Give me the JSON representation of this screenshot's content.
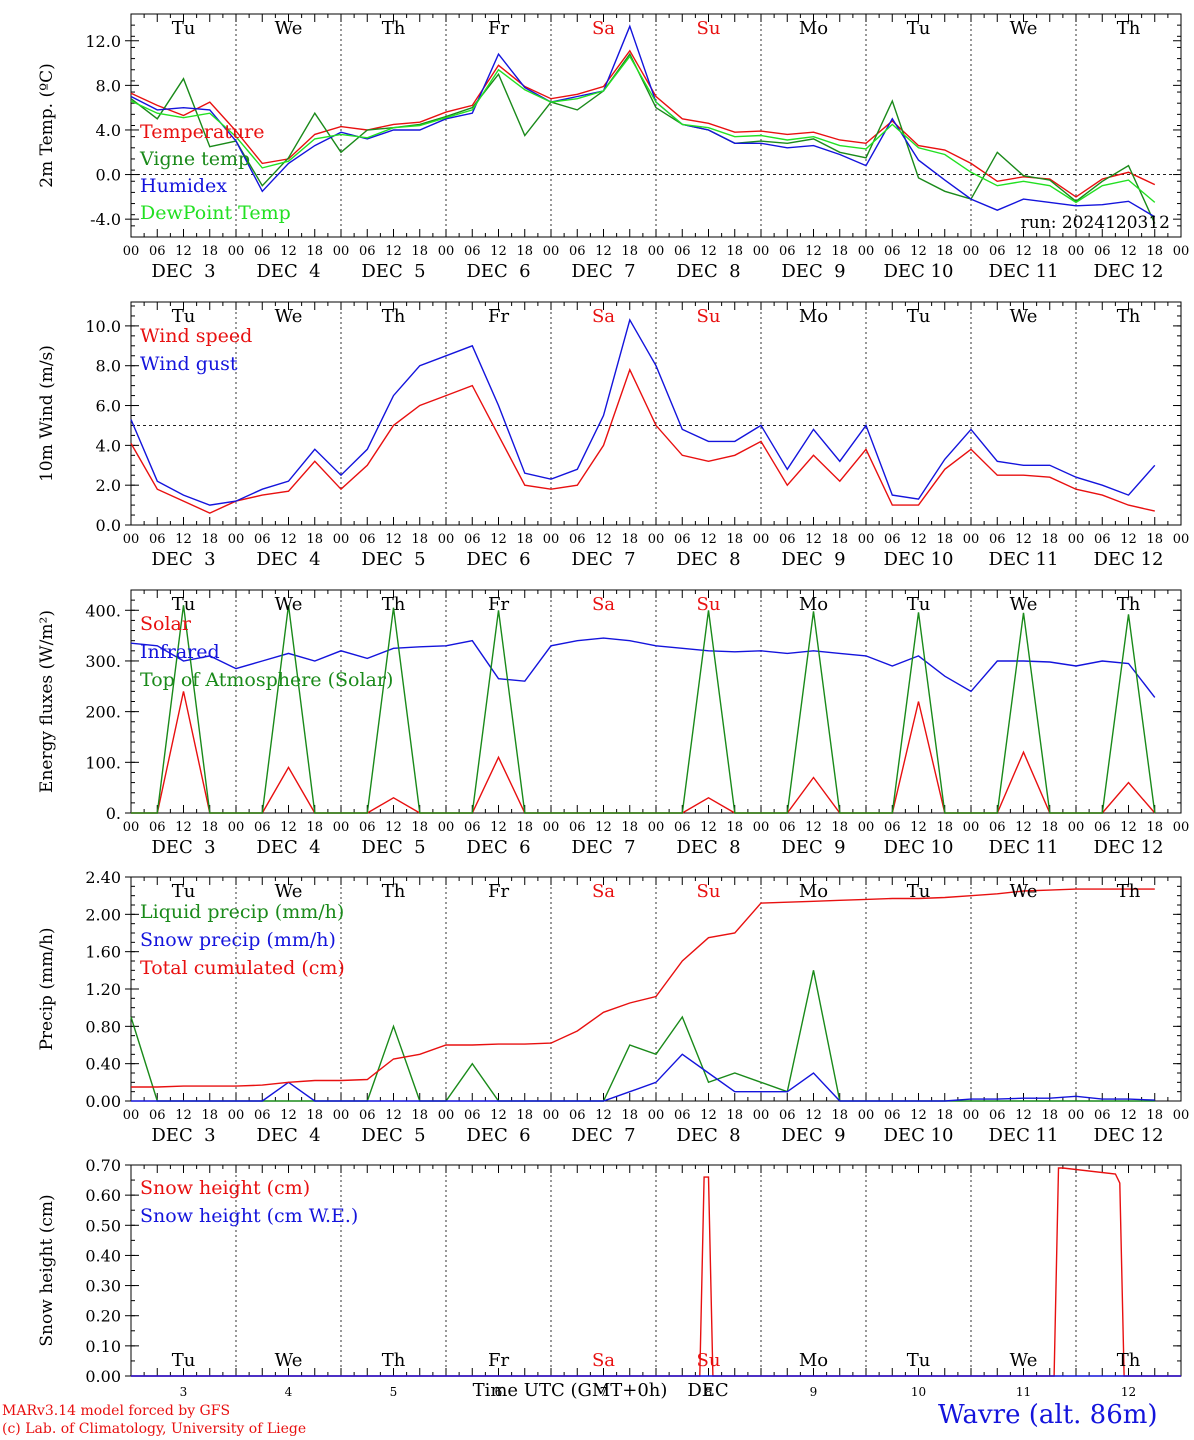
{
  "colors": {
    "red": "#e81010",
    "green": "#1a8a1a",
    "blue": "#1414dc",
    "lightgreen": "#22e022",
    "black": "#000000"
  },
  "common": {
    "day_labels": [
      "Tu",
      "We",
      "Th",
      "Fr",
      "Sa",
      "Su",
      "Mo",
      "Tu",
      "We",
      "Th"
    ],
    "weekend_days": [
      4,
      5
    ],
    "date_labels": [
      "DEC  3",
      "DEC  4",
      "DEC  5",
      "DEC  6",
      "DEC  7",
      "DEC  8",
      "DEC  9",
      "DEC 10",
      "DEC 11",
      "DEC 12"
    ],
    "hour_labels": [
      "00",
      "06",
      "12",
      "18"
    ],
    "final_hour_label": "00"
  },
  "chart_data": [
    {
      "type": "line",
      "ylabel": "2m Temp. (ºC)",
      "ylim": [
        -5.6,
        14.4
      ],
      "yticks": [
        -4,
        0,
        4,
        8,
        12
      ],
      "ytick_labels": [
        "-4.0",
        "0.0",
        "4.0",
        "8.0",
        "12.0"
      ],
      "minor_step": 1,
      "ref_line": 0,
      "x_hours": [
        0,
        6,
        12,
        18,
        24,
        30,
        36,
        42,
        48,
        54,
        60,
        66,
        72,
        78,
        84,
        90,
        96,
        102,
        108,
        114,
        120,
        126,
        132,
        138,
        144,
        150,
        156,
        162,
        168,
        174,
        180,
        186,
        192,
        198,
        204,
        210,
        216,
        222,
        228,
        234
      ],
      "series": [
        {
          "name": "Temperature",
          "color": "red",
          "values": [
            7.3,
            6.2,
            5.3,
            6.5,
            3.9,
            1.0,
            1.4,
            3.6,
            4.3,
            4.0,
            4.5,
            4.7,
            5.6,
            6.2,
            9.8,
            7.9,
            6.8,
            7.2,
            7.9,
            11.1,
            7.0,
            5.0,
            4.6,
            3.8,
            3.9,
            3.6,
            3.8,
            3.1,
            2.8,
            4.8,
            2.6,
            2.2,
            1.0,
            -0.6,
            -0.2,
            -0.4,
            -2.0,
            -0.4,
            0.2,
            -0.9
          ]
        },
        {
          "name": "Vigne temp",
          "color": "green",
          "values": [
            6.8,
            5.0,
            8.6,
            2.5,
            3.0,
            -1.0,
            1.5,
            5.5,
            2.0,
            4.0,
            4.2,
            4.5,
            5.2,
            6.0,
            9.0,
            3.5,
            6.5,
            5.8,
            7.5,
            10.8,
            6.0,
            4.5,
            4.0,
            2.8,
            3.0,
            2.8,
            3.2,
            2.0,
            1.5,
            6.6,
            -0.3,
            -1.5,
            -2.2,
            2.0,
            -0.1,
            -0.5,
            -2.4,
            -0.6,
            0.8,
            -4.4
          ]
        },
        {
          "name": "Humidex",
          "color": "blue",
          "values": [
            7.0,
            5.8,
            6.0,
            5.8,
            3.0,
            -1.5,
            1.0,
            2.6,
            3.8,
            3.2,
            4.0,
            4.0,
            5.0,
            5.5,
            10.8,
            7.8,
            6.5,
            7.0,
            7.5,
            13.3,
            6.5,
            4.5,
            4.0,
            2.8,
            2.8,
            2.4,
            2.6,
            1.8,
            0.8,
            5.0,
            1.3,
            -0.5,
            -2.2,
            -3.2,
            -2.2,
            -2.5,
            -2.8,
            -2.7,
            -2.4,
            -3.8
          ]
        },
        {
          "name": "DewPoint Temp",
          "color": "lightgreen",
          "values": [
            6.6,
            5.5,
            5.1,
            5.5,
            3.4,
            0.6,
            1.2,
            3.2,
            3.6,
            3.3,
            4.2,
            4.4,
            5.1,
            5.8,
            9.4,
            7.6,
            6.5,
            6.8,
            7.5,
            10.6,
            6.5,
            4.5,
            4.2,
            3.4,
            3.5,
            3.1,
            3.4,
            2.6,
            2.3,
            4.5,
            2.4,
            1.8,
            0.2,
            -1.0,
            -0.6,
            -1.0,
            -2.5,
            -1.0,
            -0.5,
            -2.5
          ]
        }
      ],
      "legend": [
        "Temperature",
        "Vigne temp",
        "Humidex",
        "DewPoint Temp"
      ],
      "annotation": "run: 2024120312"
    },
    {
      "type": "line",
      "ylabel": "10m Wind (m/s)",
      "ylim": [
        0,
        11.2
      ],
      "yticks": [
        0,
        2,
        4,
        6,
        8,
        10
      ],
      "ytick_labels": [
        "0.0",
        "2.0",
        "4.0",
        "6.0",
        "8.0",
        "10.0"
      ],
      "minor_step": 0.5,
      "ref_line": 5,
      "x_hours": [
        0,
        6,
        12,
        18,
        24,
        30,
        36,
        42,
        48,
        54,
        60,
        66,
        72,
        78,
        84,
        90,
        96,
        102,
        108,
        114,
        120,
        126,
        132,
        138,
        144,
        150,
        156,
        162,
        168,
        174,
        180,
        186,
        192,
        198,
        204,
        210,
        216,
        222,
        228,
        234
      ],
      "series": [
        {
          "name": "Wind speed",
          "color": "red",
          "values": [
            4.1,
            1.8,
            1.2,
            0.6,
            1.2,
            1.5,
            1.7,
            3.2,
            1.8,
            3.0,
            5.0,
            6.0,
            6.5,
            7.0,
            4.5,
            2.0,
            1.8,
            2.0,
            4.0,
            7.8,
            5.0,
            3.5,
            3.2,
            3.5,
            4.2,
            2.0,
            3.5,
            2.2,
            3.8,
            1.0,
            1.0,
            2.8,
            3.8,
            2.5,
            2.5,
            2.4,
            1.8,
            1.5,
            1.0,
            0.7
          ]
        },
        {
          "name": "Wind gust",
          "color": "blue",
          "values": [
            5.3,
            2.2,
            1.5,
            1.0,
            1.2,
            1.8,
            2.2,
            3.8,
            2.5,
            3.8,
            6.5,
            8.0,
            8.5,
            9.0,
            6.0,
            2.6,
            2.3,
            2.8,
            5.5,
            10.3,
            8.0,
            4.8,
            4.2,
            4.2,
            5.0,
            2.8,
            4.8,
            3.2,
            5.0,
            1.5,
            1.3,
            3.3,
            4.8,
            3.2,
            3.0,
            3.0,
            2.4,
            2.0,
            1.5,
            3.0
          ]
        }
      ],
      "legend": [
        "Wind speed",
        "Wind gust"
      ]
    },
    {
      "type": "line",
      "ylabel": "Energy fluxes (W/m²)",
      "ylim": [
        0,
        440
      ],
      "yticks": [
        0,
        100,
        200,
        300,
        400
      ],
      "ytick_labels": [
        "0.",
        "100.",
        "200.",
        "300.",
        "400."
      ],
      "minor_step": 20,
      "x_hours": [
        0,
        6,
        12,
        18,
        24,
        30,
        36,
        42,
        48,
        54,
        60,
        66,
        72,
        78,
        84,
        90,
        96,
        102,
        108,
        114,
        120,
        126,
        132,
        138,
        144,
        150,
        156,
        162,
        168,
        174,
        180,
        186,
        192,
        198,
        204,
        210,
        216,
        222,
        228,
        234
      ],
      "series": [
        {
          "name": "Solar",
          "color": "red",
          "values": [
            0,
            0,
            240,
            0,
            0,
            0,
            90,
            0,
            0,
            0,
            30,
            0,
            0,
            0,
            110,
            0,
            0,
            0,
            0,
            0,
            0,
            0,
            30,
            0,
            0,
            0,
            70,
            0,
            0,
            0,
            220,
            0,
            0,
            0,
            120,
            0,
            0,
            0,
            60,
            0
          ]
        },
        {
          "name": "Infrared",
          "color": "blue",
          "values": [
            335,
            330,
            300,
            310,
            285,
            300,
            315,
            300,
            320,
            305,
            325,
            328,
            330,
            340,
            265,
            260,
            330,
            340,
            345,
            340,
            330,
            325,
            320,
            318,
            320,
            315,
            320,
            315,
            310,
            290,
            310,
            270,
            240,
            300,
            300,
            298,
            290,
            300,
            295,
            228
          ]
        },
        {
          "name": "Top of Atmosphere (Solar)",
          "color": "green",
          "values": [
            0,
            0,
            410,
            0,
            0,
            0,
            410,
            0,
            0,
            0,
            405,
            0,
            0,
            0,
            400,
            0,
            0,
            0,
            0,
            0,
            0,
            0,
            400,
            0,
            0,
            0,
            398,
            0,
            0,
            0,
            396,
            0,
            0,
            0,
            395,
            0,
            0,
            0,
            392,
            0
          ]
        }
      ],
      "legend": [
        "Solar",
        "Infrared",
        "Top of Atmosphere (Solar)"
      ]
    },
    {
      "type": "line",
      "ylabel": "Precip (mm/h)",
      "ylim": [
        0,
        2.4
      ],
      "yticks": [
        0,
        0.4,
        0.8,
        1.2,
        1.6,
        2.0,
        2.4
      ],
      "ytick_labels": [
        "0.00",
        "0.40",
        "0.80",
        "1.20",
        "1.60",
        "2.00",
        "2.40"
      ],
      "minor_step": 0.1,
      "x_hours": [
        0,
        6,
        12,
        18,
        24,
        30,
        36,
        42,
        48,
        54,
        60,
        66,
        72,
        78,
        84,
        90,
        96,
        102,
        108,
        114,
        120,
        126,
        132,
        138,
        144,
        150,
        156,
        162,
        168,
        174,
        180,
        186,
        192,
        198,
        204,
        210,
        216,
        222,
        228,
        234
      ],
      "series": [
        {
          "name": "Liquid precip (mm/h)",
          "color": "green",
          "values": [
            0.9,
            0,
            0,
            0,
            0,
            0,
            0,
            0,
            0,
            0,
            0.8,
            0,
            0,
            0.4,
            0,
            0,
            0,
            0,
            0,
            0.6,
            0.5,
            0.9,
            0.2,
            0.3,
            0.2,
            0.1,
            1.4,
            0,
            0,
            0,
            0,
            0,
            0,
            0,
            0,
            0,
            0,
            0,
            0,
            0
          ]
        },
        {
          "name": "Snow precip (mm/h)",
          "color": "blue",
          "values": [
            0,
            0,
            0,
            0,
            0,
            0,
            0.2,
            0,
            0,
            0,
            0,
            0,
            0,
            0,
            0,
            0,
            0,
            0,
            0,
            0.1,
            0.2,
            0.5,
            0.3,
            0.1,
            0.1,
            0.1,
            0.3,
            0,
            0,
            0,
            0,
            0,
            0.02,
            0.02,
            0.03,
            0.03,
            0.05,
            0.02,
            0.02,
            0.01
          ]
        },
        {
          "name": "Total cumulated (cm)",
          "color": "red",
          "values": [
            0.15,
            0.15,
            0.16,
            0.16,
            0.16,
            0.17,
            0.2,
            0.22,
            0.22,
            0.23,
            0.45,
            0.5,
            0.6,
            0.6,
            0.61,
            0.61,
            0.62,
            0.75,
            0.95,
            1.05,
            1.12,
            1.5,
            1.75,
            1.8,
            2.12,
            2.13,
            2.14,
            2.15,
            2.16,
            2.17,
            2.17,
            2.18,
            2.2,
            2.22,
            2.25,
            2.26,
            2.27,
            2.27,
            2.27,
            2.27
          ]
        }
      ],
      "legend": [
        "Liquid precip (mm/h)",
        "Snow precip (mm/h)",
        "Total cumulated (cm)"
      ]
    },
    {
      "type": "line",
      "ylabel": "Snow height (cm)",
      "xlabel": "Time UTC (GMT+0h)",
      "xunit": "DEC",
      "ylim": [
        0,
        0.7
      ],
      "yticks": [
        0,
        0.1,
        0.2,
        0.3,
        0.4,
        0.5,
        0.6,
        0.7
      ],
      "ytick_labels": [
        "0.00",
        "0.10",
        "0.20",
        "0.30",
        "0.40",
        "0.50",
        "0.60",
        "0.70"
      ],
      "minor_step": 0.05,
      "x_hours": [
        0,
        130,
        131,
        132,
        133,
        134,
        211,
        212,
        213,
        225,
        226,
        227,
        240
      ],
      "series": [
        {
          "name": "Snow height (cm)",
          "color": "red",
          "values": [
            0,
            0,
            0.66,
            0.66,
            0.0,
            0,
            0,
            0.69,
            0.69,
            0.67,
            0.64,
            0,
            0
          ]
        },
        {
          "name": "Snow height (cm W.E.)",
          "color": "blue",
          "values": [
            0,
            0,
            0,
            0,
            0,
            0,
            0,
            0,
            0,
            0,
            0,
            0,
            0
          ]
        }
      ],
      "legend": [
        "Snow height (cm)",
        "Snow height (cm W.E.)"
      ],
      "day_numbers": [
        "3",
        "4",
        "5",
        "6",
        "7",
        "8",
        "9",
        "10",
        "11",
        "12"
      ]
    }
  ],
  "footer": {
    "credit_line1": "MARv3.14 model forced by GFS",
    "credit_line2": "(c) Lab. of Climatology, University of Liege",
    "station": "Wavre (alt. 86m)"
  }
}
